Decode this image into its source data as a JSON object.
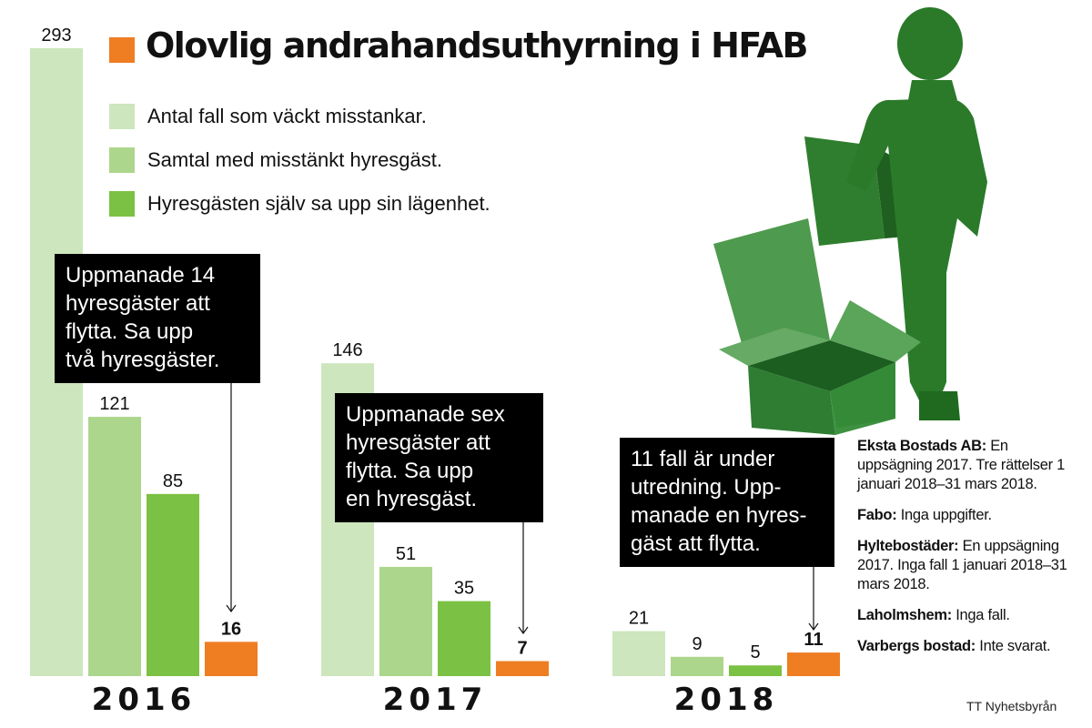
{
  "title": "Olovlig andrahandsuthyrning i HFAB",
  "legend": [
    {
      "label": "Antal fall som väckt misstankar.",
      "color": "#cde6bd"
    },
    {
      "label": "Samtal med misstänkt hyresgäst.",
      "color": "#acd68c"
    },
    {
      "label": "Hyresgästen själv sa upp sin lägenhet.",
      "color": "#7bc143"
    }
  ],
  "accent_color": "#ef7d22",
  "chart_data": {
    "type": "bar",
    "categories": [
      "2016",
      "2017",
      "2018"
    ],
    "series": [
      {
        "name": "Antal fall som väckt misstankar.",
        "values": [
          293,
          146,
          21
        ],
        "color": "#cde6bd"
      },
      {
        "name": "Samtal med misstänkt hyresgäst.",
        "values": [
          121,
          51,
          9
        ],
        "color": "#acd68c"
      },
      {
        "name": "Hyresgästen själv sa upp sin lägenhet.",
        "values": [
          85,
          35,
          5
        ],
        "color": "#7bc143"
      },
      {
        "values": [
          16,
          7,
          11
        ],
        "color": "#ef7d22"
      }
    ],
    "ylim": [
      0,
      293
    ],
    "grid": false,
    "legend_position": "top-left"
  },
  "callouts": [
    {
      "text": "Uppmanade 14\nhyresgäster att\nflytta. Sa upp\ntvå hyresgäster."
    },
    {
      "text": "Uppmanade sex\nhyresgäster att\nflytta. Sa upp\nen hyresgäst."
    },
    {
      "text": "11 fall är under\nutredning. Upp-\nmanade en hyres-\ngäst att flytta."
    }
  ],
  "side_notes": [
    {
      "name": "Eksta Bostads AB:",
      "text": " En uppsägning 2017. Tre rättelser 1 januari 2018–31 mars 2018."
    },
    {
      "name": "Fabo:",
      "text": " Inga uppgifter."
    },
    {
      "name": "Hyltebostäder:",
      "text": " En uppsägning 2017. Inga fall 1 januari 2018–31 mars 2018."
    },
    {
      "name": "Laholmshem:",
      "text": " Inga fall."
    },
    {
      "name": "Varbergs bostad:",
      "text": " Inte svarat."
    }
  ],
  "source": "TT Nyhetsbyrån"
}
